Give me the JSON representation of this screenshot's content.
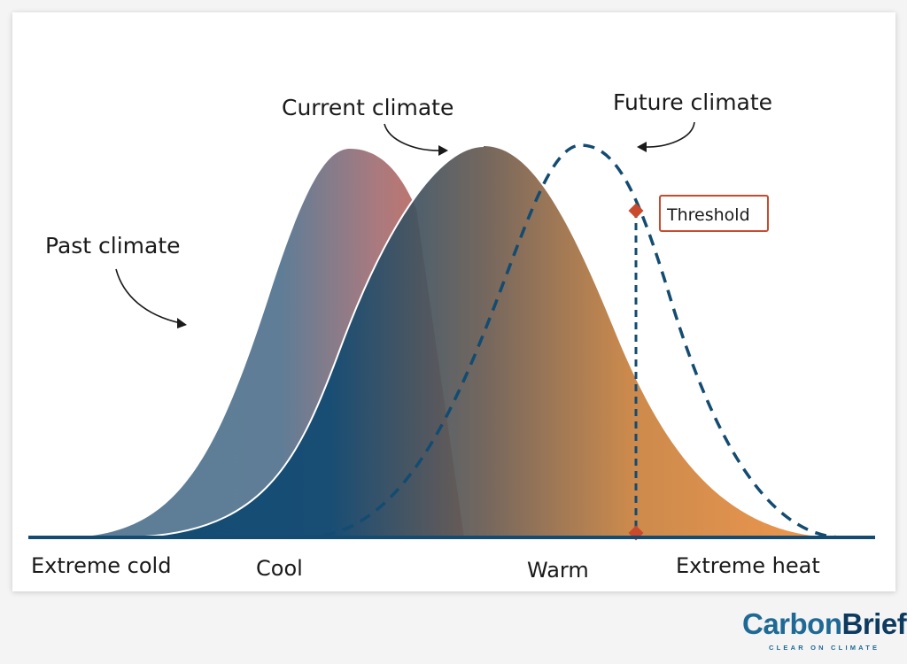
{
  "labels": {
    "past": "Past climate",
    "current": "Current climate",
    "future": "Future climate",
    "threshold": "Threshold",
    "extreme_cold": "Extreme cold",
    "cool": "Cool",
    "warm": "Warm",
    "extreme_heat": "Extreme heat"
  },
  "brand": {
    "carbon": "Carbon",
    "brief": "Brief",
    "tagline": "CLEAR ON CLIMATE"
  },
  "colors": {
    "cold_blue": "#134b71",
    "hot_orange": "#e8893c",
    "past_blue": "#5c7c97",
    "past_red": "#d6705c",
    "threshold_red": "#c94a2c",
    "baseline": "#134b71"
  }
}
